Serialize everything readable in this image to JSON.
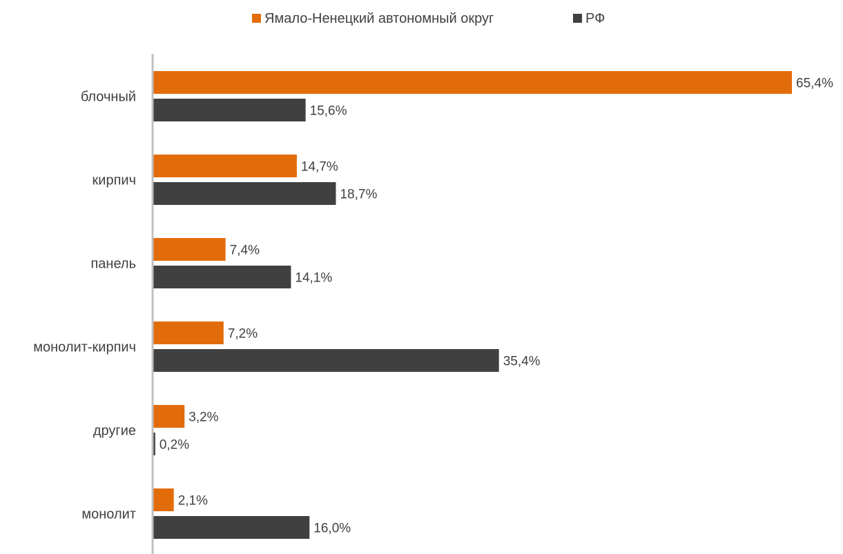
{
  "chart_data": {
    "type": "bar",
    "orientation": "horizontal",
    "categories": [
      "блочный",
      "кирпич",
      "панель",
      "монолит-кирпич",
      "другие",
      "монолит"
    ],
    "series": [
      {
        "name": "Ямало-Ненецкий автономный округ",
        "color": "#E36C0A",
        "values": [
          65.4,
          14.7,
          7.4,
          7.2,
          3.2,
          2.1
        ],
        "labels": [
          "65,4%",
          "14,7%",
          "7,4%",
          "7,2%",
          "3,2%",
          "2,1%"
        ]
      },
      {
        "name": "РФ",
        "color": "#404040",
        "values": [
          15.6,
          18.7,
          14.1,
          35.4,
          0.2,
          16.0
        ],
        "labels": [
          "15,6%",
          "18,7%",
          "14,1%",
          "35,4%",
          "0,2%",
          "16,0%"
        ]
      }
    ],
    "xlim": [
      0,
      65.4
    ],
    "grid": false,
    "legend_position": "top-center"
  }
}
